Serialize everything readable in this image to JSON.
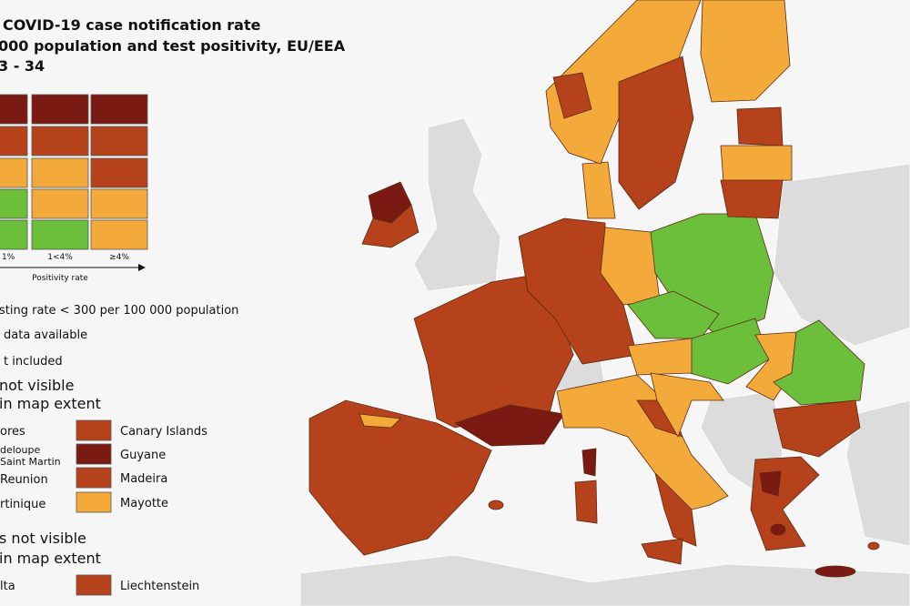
{
  "header": {
    "lines": [
      "COVID-19 case notification rate",
      "000 population and test positivity, EU/EEA",
      "3 - 34"
    ]
  },
  "legend": {
    "positivity_labels": [
      "1%",
      "1<4%",
      "≥4%"
    ],
    "axis_label": "Positivity rate",
    "notes": [
      "sting rate < 300 per 100 000 population",
      "data available",
      "t included"
    ]
  },
  "outermost": {
    "title": [
      "not visible",
      "in map extent"
    ],
    "left": [
      "ores",
      "deloupe",
      "Saint Martin",
      "Reunion",
      "rtinique"
    ],
    "right": [
      "Canary Islands",
      "Guyane",
      "Madeira",
      "Mayotte"
    ]
  },
  "small": {
    "title": [
      "s not visible",
      "in map extent"
    ],
    "left": [
      "lta"
    ],
    "right": [
      "Liechtenstein"
    ]
  }
}
